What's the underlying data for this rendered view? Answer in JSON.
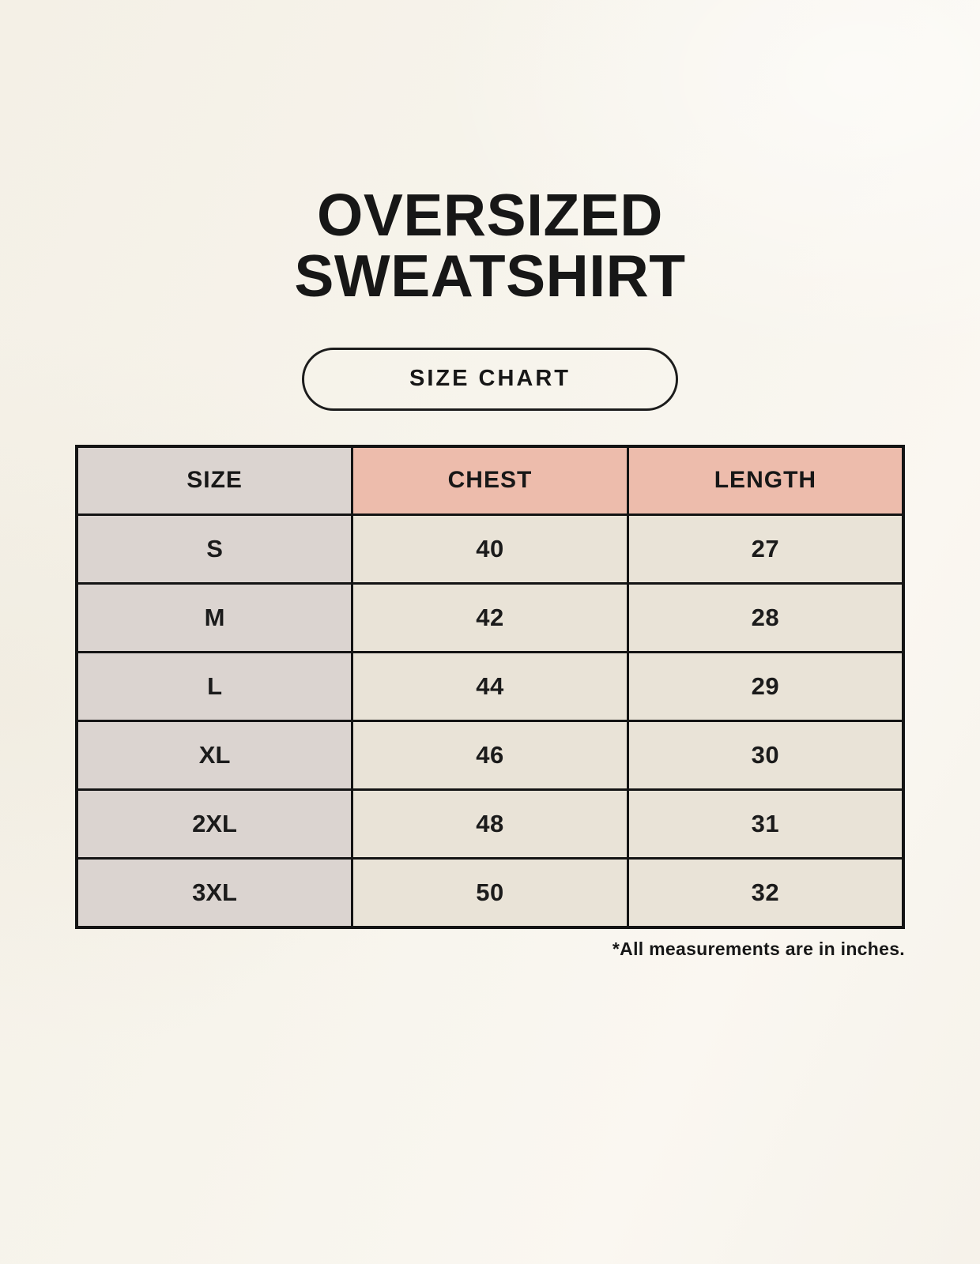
{
  "page": {
    "title_line1": "OVERSIZED",
    "title_line2": "SWEATSHIRT",
    "badge_label": "SIZE CHART",
    "footnote": "*All measurements are in inches."
  },
  "colors": {
    "page_bg": "#f7f4ec",
    "pink_header": "#edbcac",
    "gray_cell": "#dbd4d0",
    "cream_cell": "#e9e3d7",
    "border_black": "#141414",
    "text_black": "#1b1b1b"
  },
  "chart_data": {
    "type": "table",
    "title": "OVERSIZED SWEATSHIRT",
    "subtitle": "SIZE CHART",
    "columns": [
      "SIZE",
      "CHEST",
      "LENGTH"
    ],
    "rows": [
      [
        "S",
        "40",
        "27"
      ],
      [
        "M",
        "42",
        "28"
      ],
      [
        "L",
        "44",
        "29"
      ],
      [
        "XL",
        "46",
        "30"
      ],
      [
        "2XL",
        "48",
        "31"
      ],
      [
        "3XL",
        "50",
        "32"
      ]
    ],
    "units_note": "*All measurements are in inches."
  }
}
